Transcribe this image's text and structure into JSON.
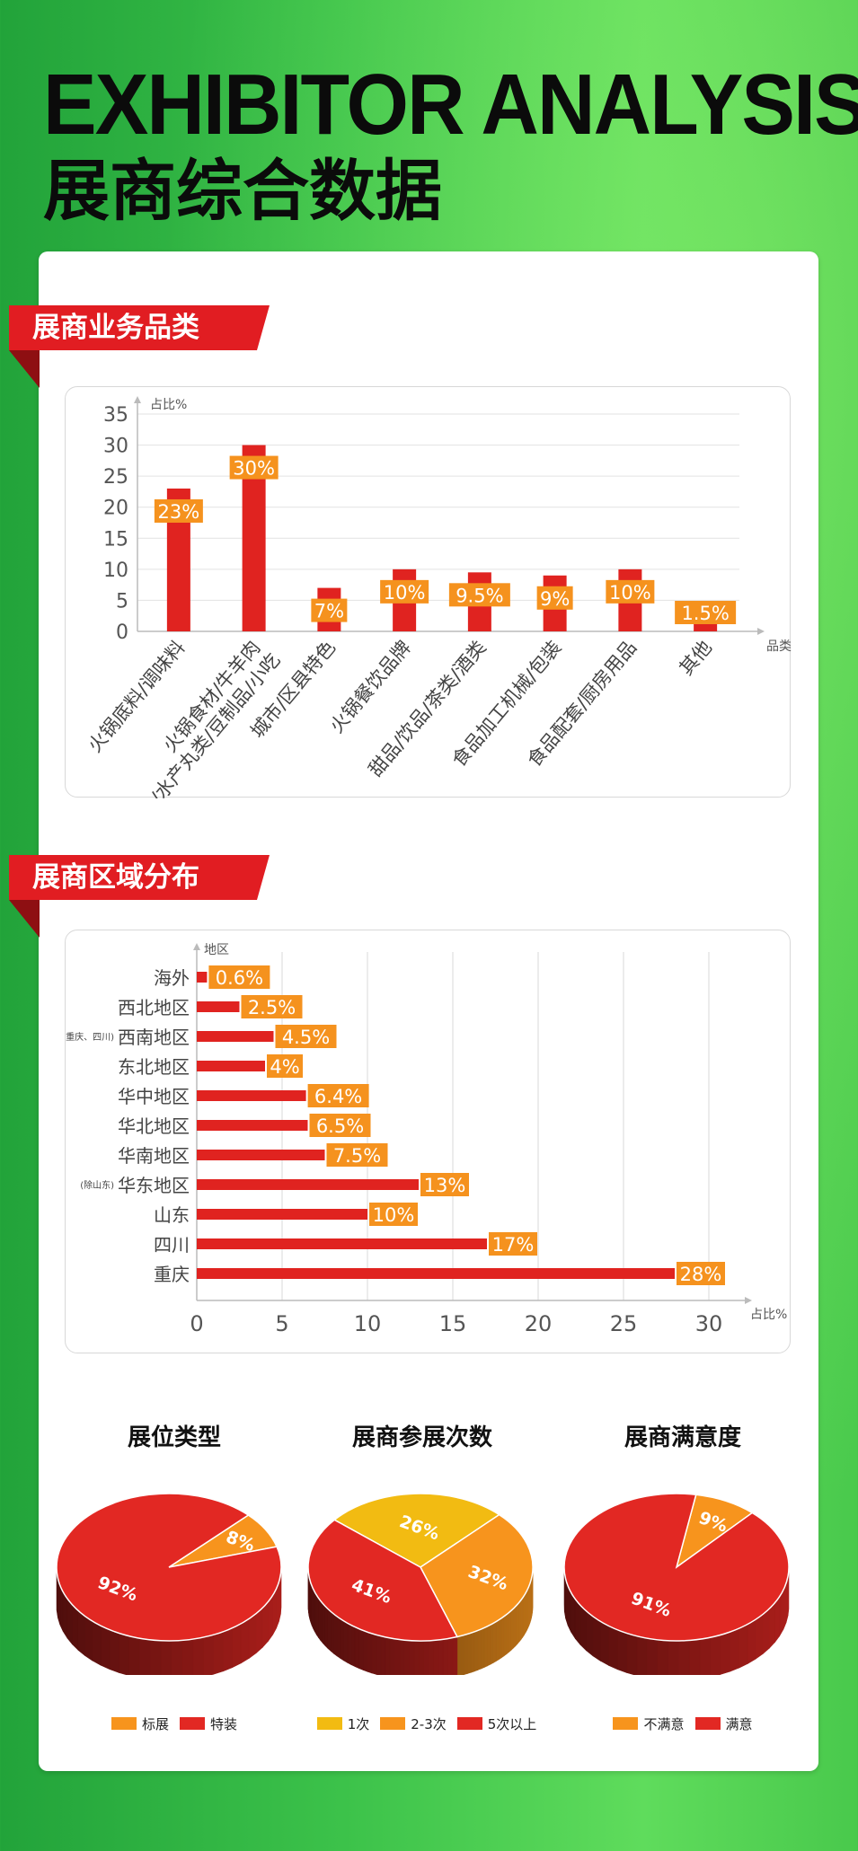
{
  "header": {
    "title_en": "EXHIBITOR  ANALYSIS",
    "title_zh": "展商综合数据"
  },
  "colors": {
    "bar_red": "#e02320",
    "label_orange": "#f5921e",
    "pie_red": "#e22823",
    "pie_orange": "#f7941d",
    "pie_yellow": "#f2bb12",
    "ribbon_red": "#e11d22"
  },
  "sections": {
    "category": "展商业务品类",
    "region": "展商区域分布"
  },
  "chart_data": [
    {
      "type": "bar",
      "title": "",
      "ylabel": "占比%",
      "xlabel": "品类",
      "ylim": [
        0,
        35
      ],
      "yticks": [
        0,
        5,
        10,
        15,
        20,
        25,
        30,
        35
      ],
      "grid": true,
      "categories": [
        [
          "火锅底料/调味料"
        ],
        [
          "火锅食材/牛羊肉",
          "/水产丸类/豆制品/小吃"
        ],
        [
          "城市/区县特色"
        ],
        [
          "火锅餐饮品牌"
        ],
        [
          "甜品/饮品/茶类/酒类"
        ],
        [
          "食品加工机械/包装"
        ],
        [
          "食品配套/厨房用品"
        ],
        [
          "其他"
        ]
      ],
      "values": [
        23,
        30,
        7,
        10,
        9.5,
        9,
        10,
        1.5
      ],
      "labels": [
        "23%",
        "30%",
        "7%",
        "10%",
        "9.5%",
        "9%",
        "10%",
        "1.5%"
      ]
    },
    {
      "type": "bar",
      "orientation": "horizontal",
      "title": "",
      "ylabel": "地区",
      "xlabel": "占比%",
      "xlim": [
        0,
        30
      ],
      "xticks": [
        0,
        5,
        10,
        15,
        20,
        25,
        30
      ],
      "grid": true,
      "categories": [
        "海外",
        "西北地区",
        "西南地区",
        "东北地区",
        "华中地区",
        "华北地区",
        "华南地区",
        "华东地区",
        "山东",
        "四川",
        "重庆"
      ],
      "notes": {
        "2": "(除重庆、四川)",
        "7": "(除山东)"
      },
      "values": [
        0.6,
        2.5,
        4.5,
        4,
        6.4,
        6.5,
        7.5,
        13,
        10,
        17,
        28
      ],
      "labels": [
        "0.6%",
        "2.5%",
        "4.5%",
        "4%",
        "6.4%",
        "6.5%",
        "7.5%",
        "13%",
        "10%",
        "17%",
        "28%"
      ]
    },
    {
      "type": "pie",
      "title": "展位类型",
      "slices": [
        {
          "name": "标展",
          "value": 8,
          "label": "8%",
          "color": "#f7941d"
        },
        {
          "name": "特装",
          "value": 92,
          "label": "92%",
          "color": "#e22823"
        }
      ]
    },
    {
      "type": "pie",
      "title": "展商参展次数",
      "slices": [
        {
          "name": "1次",
          "value": 26,
          "label": "26%",
          "color": "#f2bb12"
        },
        {
          "name": "2-3次",
          "value": 32,
          "label": "32%",
          "color": "#f7941d"
        },
        {
          "name": "5次以上",
          "value": 41,
          "label": "41%",
          "color": "#e22823"
        }
      ]
    },
    {
      "type": "pie",
      "title": "展商满意度",
      "slices": [
        {
          "name": "不满意",
          "value": 9,
          "label": "9%",
          "color": "#f7941d"
        },
        {
          "name": "满意",
          "value": 91,
          "label": "91%",
          "color": "#e22823"
        }
      ]
    }
  ]
}
